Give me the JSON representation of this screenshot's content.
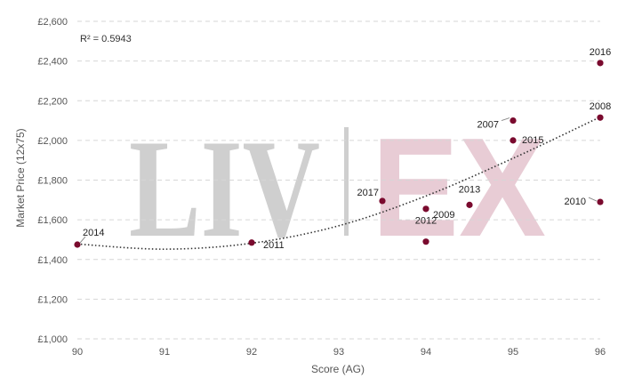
{
  "chart_data": {
    "type": "scatter",
    "title": "",
    "xlabel": "Score (AG)",
    "ylabel": "Market Price (12x75)",
    "xlim": [
      90,
      96
    ],
    "ylim": [
      1000,
      2600
    ],
    "x_ticks": [
      "90",
      "91",
      "92",
      "93",
      "94",
      "95",
      "96"
    ],
    "y_ticks": [
      "£1,000",
      "£1,200",
      "£1,400",
      "£1,600",
      "£1,800",
      "£2,000",
      "£2,200",
      "£2,400",
      "£2,600"
    ],
    "grid": "horizontal dashed",
    "annotation": "R² = 0.5943",
    "watermark": "LIV|EX",
    "point_color": "#7a0a2e",
    "points": [
      {
        "label": "2014",
        "x": 90,
        "y": 1475
      },
      {
        "label": "2011",
        "x": 92,
        "y": 1485
      },
      {
        "label": "2017",
        "x": 93.5,
        "y": 1695
      },
      {
        "label": "2012",
        "x": 94,
        "y": 1490
      },
      {
        "label": "2009",
        "x": 94,
        "y": 1655
      },
      {
        "label": "2013",
        "x": 94.5,
        "y": 1675
      },
      {
        "label": "2007",
        "x": 95,
        "y": 2100
      },
      {
        "label": "2015",
        "x": 95,
        "y": 2000
      },
      {
        "label": "2016",
        "x": 96,
        "y": 2390
      },
      {
        "label": "2008",
        "x": 96,
        "y": 2115
      },
      {
        "label": "2010",
        "x": 96,
        "y": 1690
      }
    ],
    "trendline": {
      "type": "polynomial",
      "style": "dotted",
      "color": "#333333",
      "points": [
        {
          "x": 90,
          "y": 1478
        },
        {
          "x": 91,
          "y": 1452
        },
        {
          "x": 92,
          "y": 1482
        },
        {
          "x": 93,
          "y": 1570
        },
        {
          "x": 94,
          "y": 1720
        },
        {
          "x": 95,
          "y": 1910
        },
        {
          "x": 96,
          "y": 2118
        }
      ]
    }
  }
}
